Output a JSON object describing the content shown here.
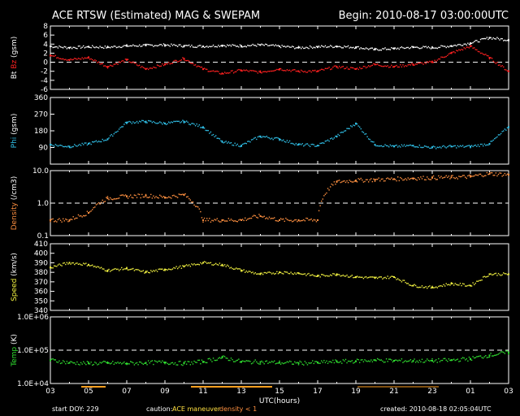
{
  "header": {
    "title": "ACE RTSW (Estimated) MAG & SWEPAM",
    "begin": "Begin: 2010-08-17 03:00:00UTC"
  },
  "footer": {
    "start_doy": "start DOY: 229",
    "caution": "caution:",
    "ace_maneuver": "ACE maneuver",
    "density_note": "density < 1",
    "created": "created: 2010-08-18 02:05:04UTC"
  },
  "colors": {
    "bt": "#ffffff",
    "bz": "#ff2020",
    "phi": "#30c0e8",
    "density": "#ff9040",
    "speed": "#f0f040",
    "temp": "#30e030",
    "maneuver": "#ffa020"
  },
  "chart_data": {
    "type": "scatter",
    "x_axis": {
      "label": "UTC(hours)",
      "range_hours": [
        0,
        24
      ],
      "tick_labels": [
        "03",
        "05",
        "07",
        "09",
        "11",
        "13",
        "15",
        "17",
        "19",
        "21",
        "23",
        "01",
        "03"
      ]
    },
    "panels": [
      {
        "id": "mag",
        "ylabel_bt": "Bt",
        "ylabel_bz": "Bz",
        "ylabel_unit": "(gsm)",
        "ylim": [
          -6,
          8
        ],
        "yticks": [
          -6,
          -4,
          -2,
          0,
          2,
          4,
          6,
          8
        ],
        "dashed": [
          0
        ],
        "series": [
          {
            "name": "Bt",
            "color_key": "bt",
            "x": [
              0,
              1,
              2,
              3,
              4,
              5,
              6,
              7,
              8,
              9,
              10,
              11,
              12,
              13,
              14,
              15,
              16,
              17,
              18,
              19,
              20,
              21,
              22,
              23,
              24
            ],
            "y": [
              3.5,
              3.2,
              3.4,
              3.3,
              3.6,
              3.7,
              3.8,
              3.6,
              3.5,
              3.7,
              3.6,
              3.8,
              3.5,
              3.2,
              3.4,
              3.5,
              3.3,
              2.8,
              3.0,
              3.3,
              3.2,
              3.6,
              4.2,
              5.4,
              4.9
            ]
          },
          {
            "name": "Bz",
            "color_key": "bz",
            "x": [
              0,
              1,
              2,
              3,
              4,
              5,
              6,
              7,
              8,
              9,
              10,
              11,
              12,
              13,
              14,
              15,
              16,
              17,
              18,
              19,
              20,
              21,
              22,
              23,
              24
            ],
            "y": [
              1.5,
              0.5,
              1.0,
              -1.0,
              0.5,
              -1.5,
              -0.5,
              0.8,
              -1.5,
              -2.5,
              -1.8,
              -2.2,
              -1.5,
              -2.0,
              -2.0,
              -1.0,
              -1.5,
              -0.5,
              -1.0,
              -0.5,
              0.0,
              2.0,
              3.5,
              1.0,
              -2.0
            ]
          }
        ]
      },
      {
        "id": "phi",
        "ylabel": "Phi",
        "ylabel_unit": "(gsm)",
        "ylim": [
          0,
          360
        ],
        "yticks": [
          90,
          180,
          270,
          360
        ],
        "series": [
          {
            "name": "Phi",
            "color_key": "phi",
            "x": [
              0,
              1,
              2,
              3,
              4,
              5,
              6,
              7,
              8,
              9,
              10,
              11,
              12,
              13,
              14,
              15,
              16,
              17,
              18,
              19,
              20,
              21,
              22,
              23,
              24
            ],
            "y": [
              105,
              95,
              110,
              135,
              225,
              230,
              220,
              230,
              200,
              120,
              100,
              150,
              135,
              105,
              100,
              150,
              220,
              105,
              95,
              100,
              90,
              95,
              95,
              110,
              200
            ]
          }
        ]
      },
      {
        "id": "density",
        "ylabel": "Density",
        "ylabel_unit": "(/cm3)",
        "ylim_log": [
          0.1,
          10
        ],
        "ytick_labels": [
          "0.1",
          "1.0",
          "10.0"
        ],
        "dashed": [
          1.0
        ],
        "series": [
          {
            "name": "Density",
            "color_key": "density",
            "x": [
              0,
              1,
              2,
              3,
              4,
              5,
              6,
              7,
              8,
              9,
              10,
              11,
              12,
              13,
              14,
              15,
              16,
              17,
              18,
              19,
              20,
              21,
              22,
              23,
              24
            ],
            "y": [
              0.3,
              0.3,
              0.5,
              1.4,
              1.6,
              1.7,
              1.5,
              1.8,
              0.3,
              0.3,
              0.3,
              0.4,
              0.3,
              0.3,
              0.3,
              4.5,
              5.0,
              5.2,
              5.5,
              5.8,
              6.0,
              6.2,
              6.5,
              8.0,
              7.5
            ]
          }
        ]
      },
      {
        "id": "speed",
        "ylabel": "Speed",
        "ylabel_unit": "(km/s)",
        "ylim": [
          340,
          410
        ],
        "yticks": [
          340,
          350,
          360,
          370,
          380,
          390,
          400,
          410
        ],
        "series": [
          {
            "name": "Speed",
            "color_key": "speed",
            "x": [
              0,
              1,
              2,
              3,
              4,
              5,
              6,
              7,
              8,
              9,
              10,
              11,
              12,
              13,
              14,
              15,
              16,
              17,
              18,
              19,
              20,
              21,
              22,
              23,
              24
            ],
            "y": [
              385,
              390,
              388,
              382,
              384,
              380,
              383,
              386,
              390,
              388,
              382,
              378,
              380,
              379,
              376,
              378,
              375,
              374,
              375,
              366,
              364,
              368,
              366,
              378,
              378
            ]
          }
        ]
      },
      {
        "id": "temp",
        "ylabel": "Temp",
        "ylabel_unit": "(K)",
        "ylim_log": [
          10000,
          1000000
        ],
        "ytick_labels": [
          "1.0E+04",
          "1.0E+05",
          "1.0E+06"
        ],
        "dashed": [
          100000
        ],
        "series": [
          {
            "name": "Temp",
            "color_key": "temp",
            "x": [
              0,
              1,
              2,
              3,
              4,
              5,
              6,
              7,
              8,
              9,
              10,
              11,
              12,
              13,
              14,
              15,
              16,
              17,
              18,
              19,
              20,
              21,
              22,
              23,
              24
            ],
            "y": [
              50000,
              42000,
              40000,
              41000,
              40000,
              42000,
              43000,
              40000,
              45000,
              60000,
              45000,
              44000,
              42000,
              41000,
              42000,
              45000,
              47000,
              50000,
              48000,
              48000,
              48000,
              50000,
              55000,
              70000,
              85000
            ]
          }
        ]
      }
    ]
  }
}
